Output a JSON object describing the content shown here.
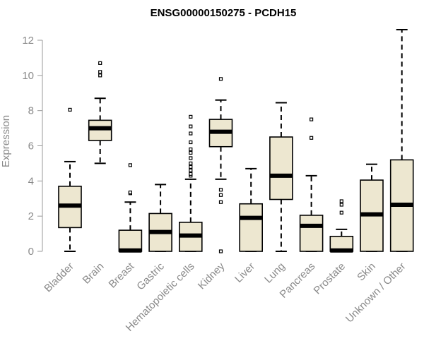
{
  "chart_data": {
    "type": "box",
    "title": "ENSG00000150275 - PCDH15",
    "ylabel": "Expression",
    "xlabel": "",
    "ylim": [
      0,
      12
    ],
    "yticks": [
      0,
      2,
      4,
      6,
      8,
      10,
      12
    ],
    "grid": false,
    "box_fill": "#ede7d0",
    "categories": [
      "Bladder",
      "Brain",
      "Breast",
      "Gastric",
      "Hematopoietic cells",
      "Kidney",
      "Liver",
      "Lung",
      "Pancreas",
      "Prostate",
      "Skin",
      "Unknown / Other"
    ],
    "boxes": [
      {
        "category": "Bladder",
        "whisker_low": 0.0,
        "q1": 1.35,
        "median": 2.6,
        "q3": 3.7,
        "whisker_high": 5.1,
        "outliers": [
          8.05
        ]
      },
      {
        "category": "Brain",
        "whisker_low": 5.0,
        "q1": 6.3,
        "median": 7.0,
        "q3": 7.45,
        "whisker_high": 8.7,
        "outliers": [
          10.0,
          10.2,
          10.7
        ]
      },
      {
        "category": "Breast",
        "whisker_low": 0.0,
        "q1": 0.0,
        "median": 0.05,
        "q3": 1.2,
        "whisker_high": 2.8,
        "outliers": [
          3.3,
          3.35,
          4.9
        ]
      },
      {
        "category": "Gastric",
        "whisker_low": 0.0,
        "q1": 0.0,
        "median": 1.1,
        "q3": 2.15,
        "whisker_high": 3.8,
        "outliers": []
      },
      {
        "category": "Hematopoietic cells",
        "whisker_low": 0.0,
        "q1": 0.0,
        "median": 0.9,
        "q3": 1.65,
        "whisker_high": 4.1,
        "outliers": [
          4.3,
          4.4,
          4.6,
          4.8,
          5.0,
          5.3,
          5.6,
          5.8,
          6.2,
          6.7,
          7.1,
          7.65
        ]
      },
      {
        "category": "Kidney",
        "whisker_low": 4.1,
        "q1": 5.95,
        "median": 6.8,
        "q3": 7.5,
        "whisker_high": 8.6,
        "outliers": [
          0.0,
          2.8,
          3.2,
          3.5,
          9.8
        ]
      },
      {
        "category": "Liver",
        "whisker_low": 0.0,
        "q1": 0.0,
        "median": 1.9,
        "q3": 2.7,
        "whisker_high": 4.7,
        "outliers": []
      },
      {
        "category": "Lung",
        "whisker_low": 0.0,
        "q1": 2.95,
        "median": 4.3,
        "q3": 6.5,
        "whisker_high": 8.45,
        "outliers": []
      },
      {
        "category": "Pancreas",
        "whisker_low": 0.0,
        "q1": 0.0,
        "median": 1.45,
        "q3": 2.05,
        "whisker_high": 4.3,
        "outliers": [
          6.45,
          7.5
        ]
      },
      {
        "category": "Prostate",
        "whisker_low": 0.0,
        "q1": 0.0,
        "median": 0.05,
        "q3": 0.85,
        "whisker_high": 1.25,
        "outliers": [
          2.2,
          2.65,
          2.85
        ]
      },
      {
        "category": "Skin",
        "whisker_low": 0.0,
        "q1": 0.0,
        "median": 2.1,
        "q3": 4.05,
        "whisker_high": 4.95,
        "outliers": []
      },
      {
        "category": "Unknown / Other",
        "whisker_low": 0.0,
        "q1": 0.0,
        "median": 2.65,
        "q3": 5.2,
        "whisker_high": 12.6,
        "outliers": []
      }
    ]
  }
}
